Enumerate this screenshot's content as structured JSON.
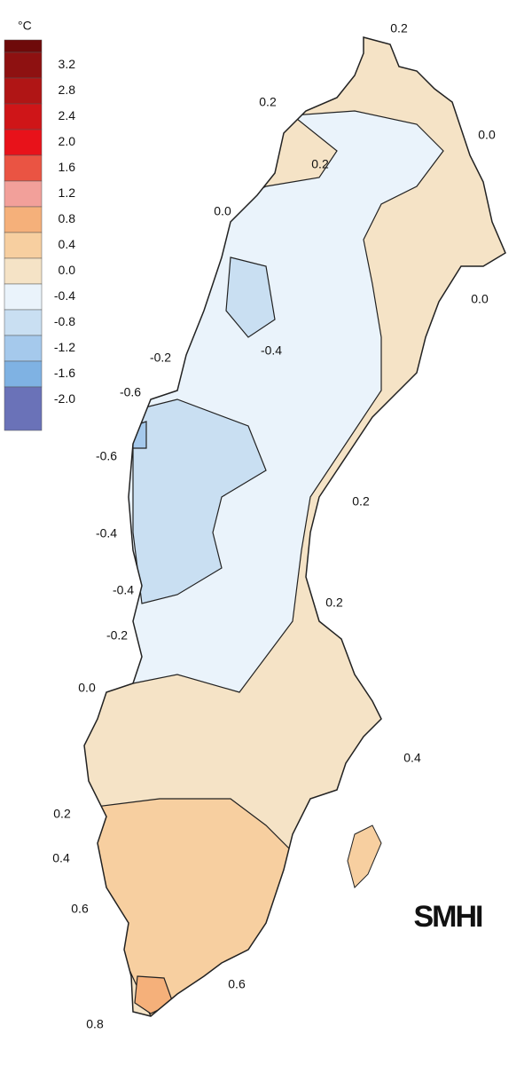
{
  "legend": {
    "unit": "°C",
    "top_color": "#6e0a0a",
    "entries": [
      {
        "label": "3.2",
        "color": "#8e1111"
      },
      {
        "label": "2.8",
        "color": "#b01515"
      },
      {
        "label": "2.4",
        "color": "#cf1518"
      },
      {
        "label": "2.0",
        "color": "#e8121a"
      },
      {
        "label": "1.6",
        "color": "#ea5443"
      },
      {
        "label": "1.2",
        "color": "#f2a09a"
      },
      {
        "label": "0.8",
        "color": "#f5b07a"
      },
      {
        "label": "0.4",
        "color": "#f7cfa0"
      },
      {
        "label": "0.0",
        "color": "#f5e3c6"
      },
      {
        "label": "-0.4",
        "color": "#eaf3fb"
      },
      {
        "label": "-0.8",
        "color": "#c9dff2"
      },
      {
        "label": "-1.2",
        "color": "#a5c9ec"
      },
      {
        "label": "-1.6",
        "color": "#7fb2e3"
      },
      {
        "label": "-2.0",
        "color": "#6a72b8"
      }
    ]
  },
  "contour_labels": [
    "0.2",
    "0.2",
    "0.0",
    "0.2",
    "0.0",
    "0.0",
    "-0.2",
    "-0.4",
    "-0.6",
    "-0.6",
    "0.2",
    "-0.4",
    "-0.4",
    "0.2",
    "-0.2",
    "0.0",
    "0.4",
    "0.2",
    "0.4",
    "0.6",
    "0.6",
    "0.8"
  ],
  "logo": "SMHI"
}
